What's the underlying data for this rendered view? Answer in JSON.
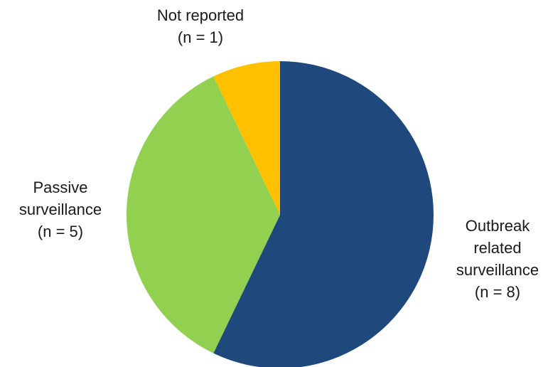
{
  "chart_data": {
    "type": "pie",
    "title": "",
    "slices": [
      {
        "label": "Outbreak related surveillance",
        "count_label": "(n = 8)",
        "value": 8,
        "color": "#1F497D"
      },
      {
        "label": "Passive surveillance",
        "count_label": "(n = 5)",
        "value": 5,
        "color": "#92D050"
      },
      {
        "label": "Not reported",
        "count_label": "(n = 1)",
        "value": 1,
        "color": "#FFC000"
      }
    ],
    "start_angle_deg": 0,
    "direction": "clockwise",
    "legend": "none"
  }
}
